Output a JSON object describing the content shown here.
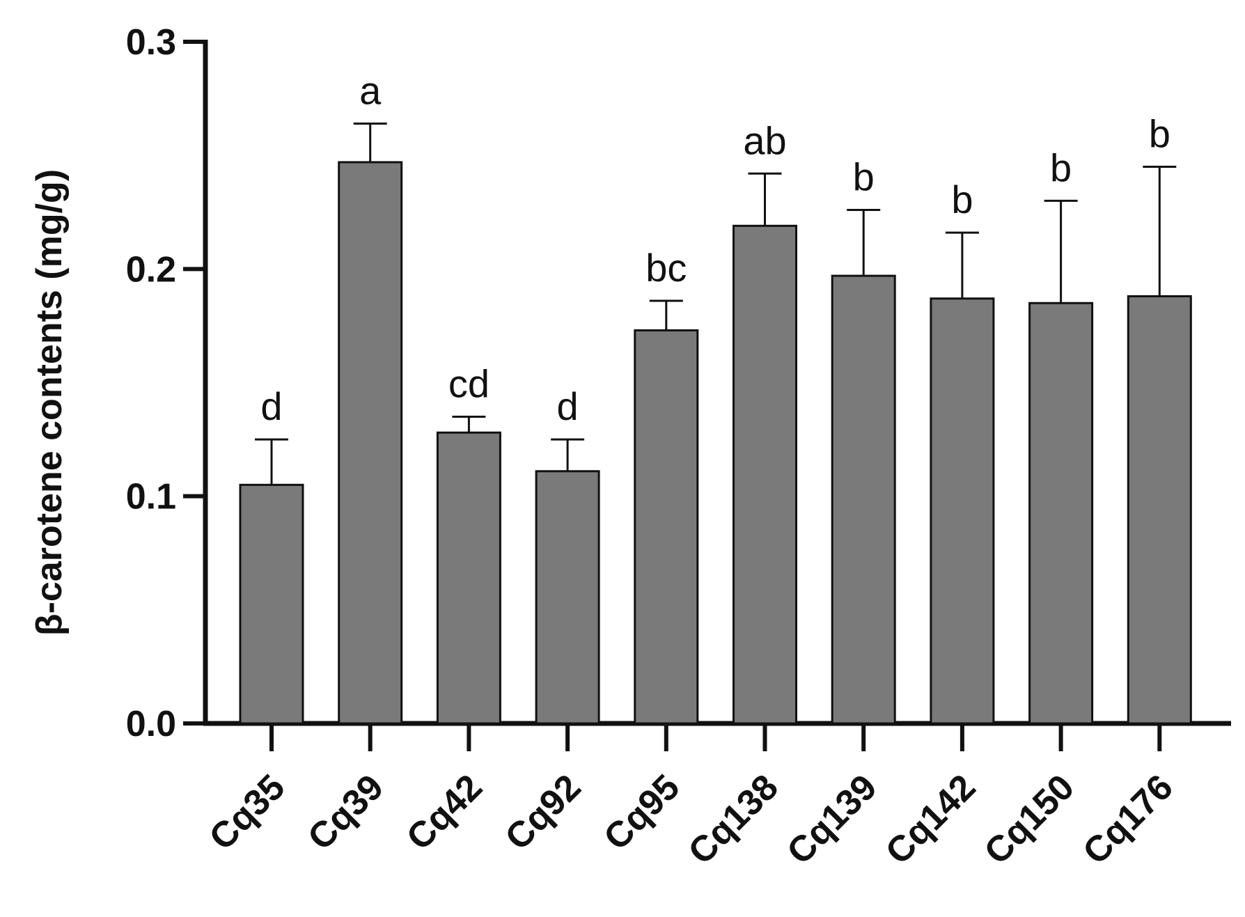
{
  "chart_data": {
    "type": "bar",
    "title": "",
    "xlabel": "",
    "ylabel": "β-carotene contents (mg/g)",
    "ylim": [
      0,
      0.3
    ],
    "yticks": [
      "0.0",
      "0.1",
      "0.2",
      "0.3"
    ],
    "categories": [
      "Cq35",
      "Cq39",
      "Cq42",
      "Cq92",
      "Cq95",
      "Cq138",
      "Cq139",
      "Cq142",
      "Cq150",
      "Cq176"
    ],
    "values": [
      0.105,
      0.247,
      0.128,
      0.111,
      0.173,
      0.219,
      0.197,
      0.187,
      0.185,
      0.188
    ],
    "errors": [
      0.02,
      0.017,
      0.007,
      0.014,
      0.013,
      0.023,
      0.029,
      0.029,
      0.045,
      0.057
    ],
    "significance": [
      "d",
      "a",
      "cd",
      "d",
      "bc",
      "ab",
      "b",
      "b",
      "b",
      "b"
    ],
    "grid": false,
    "bar_color": "#7a7a7a"
  }
}
